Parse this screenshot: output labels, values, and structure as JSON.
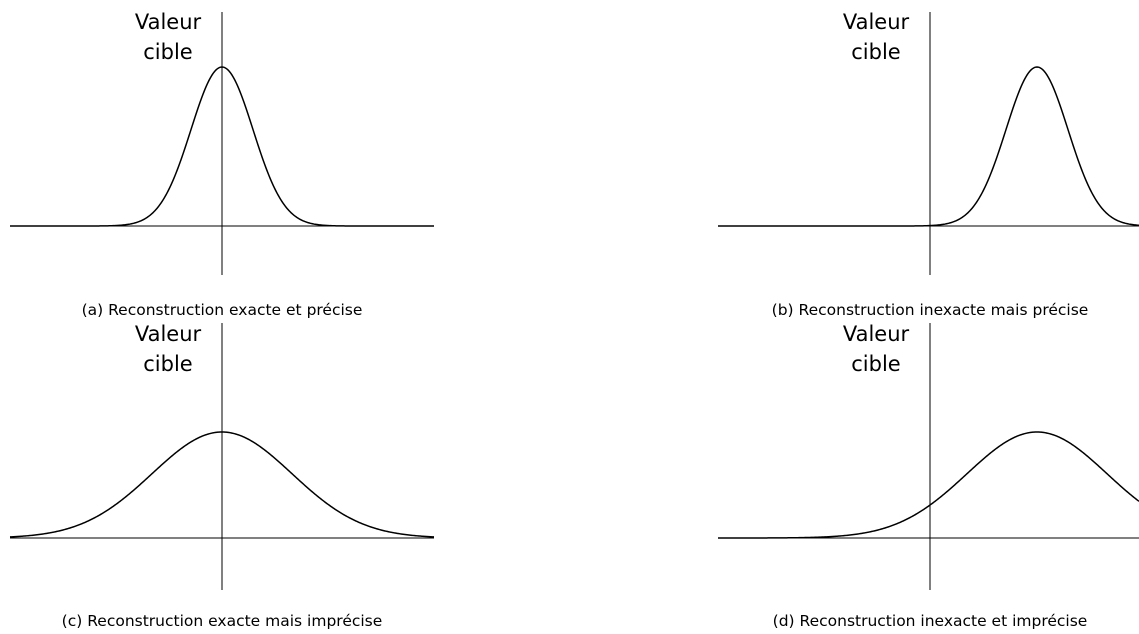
{
  "panels": [
    {
      "axis_label": [
        "Valeur",
        "cible"
      ],
      "caption": "(a) Reconstruction exacte et précise"
    },
    {
      "axis_label": [
        "Valeur",
        "cible"
      ],
      "caption": "(b) Reconstruction inexacte mais précise"
    },
    {
      "axis_label": [
        "Valeur",
        "cible"
      ],
      "caption": "(c) Reconstruction exacte mais imprécise"
    },
    {
      "axis_label": [
        "Valeur",
        "cible"
      ],
      "caption": "(d) Reconstruction inexacte et imprécise"
    }
  ]
}
